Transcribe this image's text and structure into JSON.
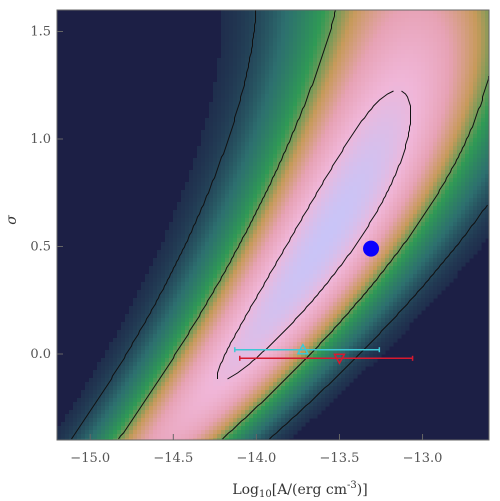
{
  "chart_data": {
    "type": "heatmap",
    "xlim": [
      -15.2,
      -12.6
    ],
    "ylim": [
      -0.4,
      1.6
    ],
    "xticks": [
      "-15.0",
      "-14.5",
      "-14.0",
      "-13.5",
      "-13.0"
    ],
    "yticks": [
      "0.0",
      "0.5",
      "1.0",
      "1.5"
    ],
    "xlabel_main": "Log",
    "xlabel_sub": "10",
    "xlabel_rest": "[A/(erg cm",
    "xlabel_sup": "-3",
    "xlabel_end": ")]",
    "ylabel": "σ",
    "grid": false,
    "colormap": [
      "#1c1f45",
      "#2d6f6f",
      "#2f9a55",
      "#c79a5a",
      "#e7a2b5",
      "#f0b6d8",
      "#c9c4f7"
    ],
    "best_fit_point": {
      "x": -13.31,
      "y": 0.49,
      "color": "#0a00ff"
    },
    "markers": [
      {
        "x": -13.72,
        "y": 0.02,
        "xerr_low": -14.13,
        "xerr_high": -13.26,
        "color": "#3ec8d6",
        "symbol": "triangle-up"
      },
      {
        "x": -13.5,
        "y": -0.02,
        "xerr_low": -14.1,
        "xerr_high": -13.06,
        "color": "#d8192f",
        "symbol": "triangle-down"
      }
    ]
  }
}
